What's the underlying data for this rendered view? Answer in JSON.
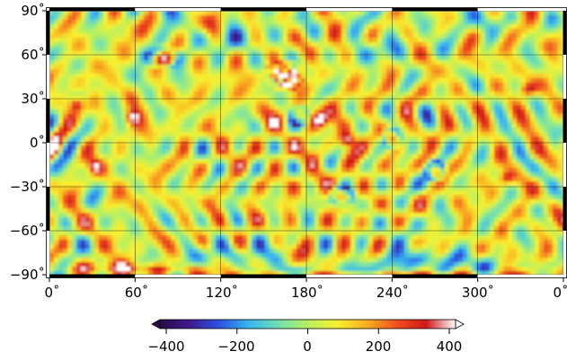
{
  "map": {
    "projection": "equirectangular global",
    "lat_ticks": [
      "90˚",
      "60˚",
      "30˚",
      "0˚",
      "−30˚",
      "−60˚",
      "−90˚"
    ],
    "lon_ticks": [
      "0˚",
      "60˚",
      "120˚",
      "180˚",
      "240˚",
      "300˚",
      "0˚"
    ],
    "grid_color": "#000000",
    "anomalies": [
      {
        "lon": 19,
        "lat": 26,
        "kind": "high",
        "strength": 1.0
      },
      {
        "lon": 58,
        "lat": 17,
        "kind": "high",
        "strength": 0.85
      },
      {
        "lon": 32,
        "lat": -16,
        "kind": "high",
        "strength": 0.8
      },
      {
        "lon": 335,
        "lat": 36,
        "kind": "high",
        "strength": 1.0
      },
      {
        "lon": 320,
        "lat": -24,
        "kind": "high",
        "strength": 0.75
      },
      {
        "lon": 165,
        "lat": 45,
        "kind": "extreme",
        "strength": 1.0
      },
      {
        "lon": 208,
        "lat": 2,
        "kind": "high",
        "strength": 0.9
      },
      {
        "lon": 190,
        "lat": 15,
        "kind": "high",
        "strength": 0.6
      },
      {
        "lon": 270,
        "lat": -19,
        "kind": "ring-low",
        "strength": 0.9
      },
      {
        "lon": 205,
        "lat": -36,
        "kind": "ring-low",
        "strength": 0.8
      },
      {
        "lon": 240,
        "lat": 3,
        "kind": "ring-low",
        "strength": 0.7
      },
      {
        "lon": 175,
        "lat": 18,
        "kind": "ring-low",
        "strength": 0.6
      },
      {
        "lon": 80,
        "lat": 57,
        "kind": "ring-low",
        "strength": 0.7
      },
      {
        "lon": 228,
        "lat": 60,
        "kind": "low",
        "strength": 0.7
      },
      {
        "lon": 130,
        "lat": 70,
        "kind": "low",
        "strength": 0.6
      },
      {
        "lon": 250,
        "lat": -60,
        "kind": "low",
        "strength": 0.5
      },
      {
        "lon": 270,
        "lat": -81,
        "kind": "low",
        "strength": 0.8
      },
      {
        "lon": 130,
        "lat": -75,
        "kind": "low",
        "strength": 0.6
      },
      {
        "lon": 40,
        "lat": -86,
        "kind": "high",
        "strength": 0.7
      },
      {
        "lon": 280,
        "lat": 80,
        "kind": "low",
        "strength": 0.4
      }
    ]
  },
  "colorbar": {
    "min": -400,
    "max": 400,
    "tick_labels": [
      "−400",
      "−200",
      "0",
      "200",
      "400"
    ],
    "tick_values": [
      -400,
      -200,
      0,
      200,
      400
    ],
    "colors": [
      "#2a0a4a",
      "#3f1a8f",
      "#2a52e0",
      "#39b6f0",
      "#6fe0b0",
      "#b8f060",
      "#f8f030",
      "#f8b020",
      "#f05020",
      "#d01818",
      "#ffffff"
    ]
  }
}
